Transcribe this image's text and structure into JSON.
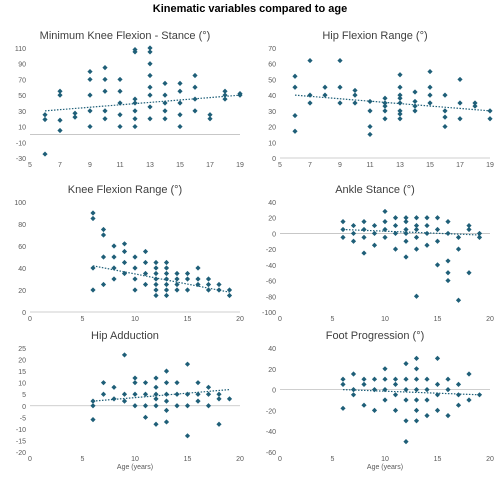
{
  "figure": {
    "title": "Kinematic variables compared to age",
    "colors": {
      "marker": "#1f5f78",
      "trend": "#1f5f78",
      "axis": "#bfbfbf",
      "text": "#595959"
    }
  },
  "chart_data": [
    {
      "type": "scatter",
      "title": "Minimum Knee Flexion - Stance (°)",
      "xlabel": "",
      "xlim": [
        5,
        19
      ],
      "ylim": [
        -30,
        110
      ],
      "xticks": [
        5,
        7,
        9,
        11,
        13,
        15,
        17,
        19
      ],
      "yticks": [
        -30,
        -10,
        10,
        30,
        50,
        70,
        90,
        110
      ],
      "trend": [
        [
          6,
          30
        ],
        [
          19,
          50
        ]
      ],
      "points": [
        [
          6,
          -25
        ],
        [
          6,
          19
        ],
        [
          6,
          25
        ],
        [
          7,
          5
        ],
        [
          7,
          18
        ],
        [
          7,
          50
        ],
        [
          7,
          55
        ],
        [
          8,
          22
        ],
        [
          8,
          27
        ],
        [
          9,
          10
        ],
        [
          9,
          30
        ],
        [
          9,
          50
        ],
        [
          9,
          70
        ],
        [
          9,
          80
        ],
        [
          10,
          20
        ],
        [
          10,
          30
        ],
        [
          10,
          55
        ],
        [
          10,
          70
        ],
        [
          10,
          85
        ],
        [
          11,
          10
        ],
        [
          11,
          25
        ],
        [
          11,
          40
        ],
        [
          11,
          55
        ],
        [
          11,
          70
        ],
        [
          12,
          10
        ],
        [
          12,
          20
        ],
        [
          12,
          30
        ],
        [
          12,
          40
        ],
        [
          12,
          45
        ],
        [
          12,
          105
        ],
        [
          12,
          108
        ],
        [
          13,
          20
        ],
        [
          13,
          35
        ],
        [
          13,
          50
        ],
        [
          13,
          60
        ],
        [
          13,
          75
        ],
        [
          13,
          90
        ],
        [
          13,
          105
        ],
        [
          13,
          110
        ],
        [
          14,
          20
        ],
        [
          14,
          30
        ],
        [
          14,
          40
        ],
        [
          14,
          50
        ],
        [
          14,
          65
        ],
        [
          15,
          10
        ],
        [
          15,
          25
        ],
        [
          15,
          40
        ],
        [
          15,
          55
        ],
        [
          15,
          65
        ],
        [
          16,
          30
        ],
        [
          16,
          45
        ],
        [
          16,
          60
        ],
        [
          16,
          75
        ],
        [
          17,
          20
        ],
        [
          17,
          25
        ],
        [
          18,
          45
        ],
        [
          18,
          50
        ],
        [
          18,
          55
        ],
        [
          19,
          50
        ],
        [
          19,
          52
        ]
      ]
    },
    {
      "type": "scatter",
      "title": "Hip Flexion Range (°)",
      "xlabel": "",
      "xlim": [
        5,
        19
      ],
      "ylim": [
        0,
        70
      ],
      "xticks": [
        5,
        7,
        9,
        11,
        13,
        15,
        17,
        19
      ],
      "yticks": [
        0,
        10,
        20,
        30,
        40,
        50,
        60,
        70
      ],
      "trend": [
        [
          6,
          40
        ],
        [
          19,
          30
        ]
      ],
      "points": [
        [
          6,
          17
        ],
        [
          6,
          27
        ],
        [
          6,
          45
        ],
        [
          6,
          52
        ],
        [
          7,
          35
        ],
        [
          7,
          40
        ],
        [
          7,
          62
        ],
        [
          8,
          40
        ],
        [
          8,
          45
        ],
        [
          9,
          35
        ],
        [
          9,
          45
        ],
        [
          9,
          62
        ],
        [
          10,
          35
        ],
        [
          10,
          40
        ],
        [
          10,
          43
        ],
        [
          11,
          20
        ],
        [
          11,
          30
        ],
        [
          11,
          15
        ],
        [
          11,
          36
        ],
        [
          12,
          25
        ],
        [
          12,
          30
        ],
        [
          12,
          33
        ],
        [
          12,
          35
        ],
        [
          12,
          38
        ],
        [
          13,
          25
        ],
        [
          13,
          28
        ],
        [
          13,
          30
        ],
        [
          13,
          35
        ],
        [
          13,
          38
        ],
        [
          13,
          40
        ],
        [
          13,
          45
        ],
        [
          13,
          53
        ],
        [
          14,
          30
        ],
        [
          14,
          33
        ],
        [
          14,
          36
        ],
        [
          14,
          42
        ],
        [
          15,
          35
        ],
        [
          15,
          40
        ],
        [
          15,
          45
        ],
        [
          15,
          55
        ],
        [
          16,
          20
        ],
        [
          16,
          26
        ],
        [
          16,
          30
        ],
        [
          16,
          40
        ],
        [
          17,
          25
        ],
        [
          17,
          35
        ],
        [
          17,
          50
        ],
        [
          18,
          33
        ],
        [
          18,
          35
        ],
        [
          19,
          25
        ],
        [
          19,
          30
        ]
      ]
    },
    {
      "type": "scatter",
      "title": "Knee Flexion Range (°)",
      "xlabel": "",
      "xlim": [
        0,
        20
      ],
      "ylim": [
        0,
        100
      ],
      "xticks": [
        0,
        5,
        10,
        15,
        20
      ],
      "yticks": [
        0,
        20,
        40,
        60,
        80,
        100
      ],
      "trend": [
        [
          6,
          42
        ],
        [
          19,
          18
        ]
      ],
      "points": [
        [
          6,
          20
        ],
        [
          6,
          40
        ],
        [
          6,
          85
        ],
        [
          6,
          90
        ],
        [
          7,
          25
        ],
        [
          7,
          50
        ],
        [
          7,
          70
        ],
        [
          7,
          75
        ],
        [
          8,
          30
        ],
        [
          8,
          40
        ],
        [
          8,
          50
        ],
        [
          8,
          60
        ],
        [
          9,
          35
        ],
        [
          9,
          45
        ],
        [
          9,
          55
        ],
        [
          9,
          62
        ],
        [
          10,
          20
        ],
        [
          10,
          30
        ],
        [
          10,
          40
        ],
        [
          10,
          50
        ],
        [
          11,
          25
        ],
        [
          11,
          35
        ],
        [
          11,
          45
        ],
        [
          11,
          55
        ],
        [
          12,
          15
        ],
        [
          12,
          20
        ],
        [
          12,
          25
        ],
        [
          12,
          30
        ],
        [
          12,
          35
        ],
        [
          12,
          40
        ],
        [
          12,
          45
        ],
        [
          13,
          15
        ],
        [
          13,
          20
        ],
        [
          13,
          25
        ],
        [
          13,
          30
        ],
        [
          13,
          35
        ],
        [
          13,
          40
        ],
        [
          13,
          45
        ],
        [
          14,
          20
        ],
        [
          14,
          25
        ],
        [
          14,
          30
        ],
        [
          14,
          35
        ],
        [
          15,
          20
        ],
        [
          15,
          30
        ],
        [
          15,
          35
        ],
        [
          16,
          25
        ],
        [
          16,
          30
        ],
        [
          16,
          40
        ],
        [
          17,
          20
        ],
        [
          17,
          25
        ],
        [
          17,
          30
        ],
        [
          18,
          20
        ],
        [
          18,
          25
        ],
        [
          19,
          15
        ],
        [
          19,
          20
        ]
      ]
    },
    {
      "type": "scatter",
      "title": "Ankle Stance (°)",
      "xlabel": "",
      "xlim": [
        0,
        20
      ],
      "ylim": [
        -100,
        40
      ],
      "xticks": [
        0,
        5,
        10,
        15,
        20
      ],
      "yticks": [
        -100,
        -80,
        -60,
        -40,
        -20,
        0,
        20,
        40
      ],
      "trend": [
        [
          6,
          5
        ],
        [
          19,
          -2
        ]
      ],
      "points": [
        [
          6,
          -5
        ],
        [
          6,
          5
        ],
        [
          6,
          15
        ],
        [
          7,
          -10
        ],
        [
          7,
          0
        ],
        [
          7,
          10
        ],
        [
          8,
          -25
        ],
        [
          8,
          -5
        ],
        [
          8,
          5
        ],
        [
          8,
          15
        ],
        [
          9,
          -15
        ],
        [
          9,
          0
        ],
        [
          9,
          10
        ],
        [
          10,
          -5
        ],
        [
          10,
          5
        ],
        [
          10,
          15
        ],
        [
          10,
          28
        ],
        [
          11,
          -20
        ],
        [
          11,
          0
        ],
        [
          11,
          10
        ],
        [
          11,
          20
        ],
        [
          12,
          -30
        ],
        [
          12,
          -10
        ],
        [
          12,
          0
        ],
        [
          12,
          5
        ],
        [
          12,
          15
        ],
        [
          12,
          20
        ],
        [
          13,
          -80
        ],
        [
          13,
          -20
        ],
        [
          13,
          -5
        ],
        [
          13,
          5
        ],
        [
          13,
          10
        ],
        [
          13,
          20
        ],
        [
          14,
          -15
        ],
        [
          14,
          0
        ],
        [
          14,
          10
        ],
        [
          14,
          20
        ],
        [
          15,
          -40
        ],
        [
          15,
          -10
        ],
        [
          15,
          5
        ],
        [
          15,
          20
        ],
        [
          16,
          -60
        ],
        [
          16,
          -50
        ],
        [
          16,
          -35
        ],
        [
          16,
          0
        ],
        [
          16,
          15
        ],
        [
          17,
          -85
        ],
        [
          17,
          -20
        ],
        [
          17,
          -5
        ],
        [
          18,
          -50
        ],
        [
          18,
          5
        ],
        [
          18,
          10
        ],
        [
          19,
          0
        ],
        [
          19,
          -5
        ]
      ]
    },
    {
      "type": "scatter",
      "title": "Hip Adduction",
      "xlabel": "Age (years)",
      "xlim": [
        0,
        20
      ],
      "ylim": [
        -20,
        25
      ],
      "xticks": [
        0,
        5,
        10,
        15,
        20
      ],
      "yticks": [
        -20,
        -15,
        -10,
        -5,
        0,
        5,
        10,
        15,
        20,
        25
      ],
      "trend": [
        [
          6,
          2
        ],
        [
          19,
          7
        ]
      ],
      "points": [
        [
          6,
          -6
        ],
        [
          6,
          0
        ],
        [
          6,
          2
        ],
        [
          7,
          5
        ],
        [
          7,
          10
        ],
        [
          8,
          3
        ],
        [
          8,
          8
        ],
        [
          9,
          2
        ],
        [
          9,
          5
        ],
        [
          9,
          22
        ],
        [
          10,
          0
        ],
        [
          10,
          5
        ],
        [
          10,
          10
        ],
        [
          10,
          12
        ],
        [
          11,
          -5
        ],
        [
          11,
          0
        ],
        [
          11,
          5
        ],
        [
          11,
          10
        ],
        [
          12,
          -8
        ],
        [
          12,
          0
        ],
        [
          12,
          3
        ],
        [
          12,
          5
        ],
        [
          12,
          8
        ],
        [
          12,
          12
        ],
        [
          13,
          -7
        ],
        [
          13,
          -2
        ],
        [
          13,
          2
        ],
        [
          13,
          5
        ],
        [
          13,
          10
        ],
        [
          13,
          15
        ],
        [
          14,
          0
        ],
        [
          14,
          5
        ],
        [
          14,
          10
        ],
        [
          15,
          -13
        ],
        [
          15,
          0
        ],
        [
          15,
          5
        ],
        [
          15,
          18
        ],
        [
          16,
          2
        ],
        [
          16,
          5
        ],
        [
          16,
          10
        ],
        [
          17,
          0
        ],
        [
          17,
          5
        ],
        [
          17,
          8
        ],
        [
          18,
          -8
        ],
        [
          18,
          3
        ],
        [
          18,
          5
        ],
        [
          19,
          3
        ]
      ]
    },
    {
      "type": "scatter",
      "title": "Foot Progression (°)",
      "xlabel": "Age (years)",
      "xlim": [
        0,
        20
      ],
      "ylim": [
        -60,
        40
      ],
      "xticks": [
        0,
        5,
        10,
        15,
        20
      ],
      "yticks": [
        -60,
        -40,
        -20,
        0,
        20,
        40
      ],
      "trend": [
        [
          6,
          0
        ],
        [
          19,
          -5
        ]
      ],
      "points": [
        [
          6,
          -18
        ],
        [
          6,
          5
        ],
        [
          6,
          10
        ],
        [
          7,
          -5
        ],
        [
          7,
          0
        ],
        [
          7,
          15
        ],
        [
          8,
          -15
        ],
        [
          8,
          5
        ],
        [
          8,
          10
        ],
        [
          9,
          -20
        ],
        [
          9,
          0
        ],
        [
          9,
          10
        ],
        [
          10,
          -10
        ],
        [
          10,
          0
        ],
        [
          10,
          10
        ],
        [
          10,
          20
        ],
        [
          11,
          -20
        ],
        [
          11,
          -5
        ],
        [
          11,
          5
        ],
        [
          11,
          10
        ],
        [
          12,
          -50
        ],
        [
          12,
          -30
        ],
        [
          12,
          -10
        ],
        [
          12,
          0
        ],
        [
          12,
          10
        ],
        [
          12,
          25
        ],
        [
          13,
          -30
        ],
        [
          13,
          -20
        ],
        [
          13,
          -10
        ],
        [
          13,
          0
        ],
        [
          13,
          10
        ],
        [
          13,
          20
        ],
        [
          13,
          30
        ],
        [
          14,
          -25
        ],
        [
          14,
          -10
        ],
        [
          14,
          0
        ],
        [
          14,
          10
        ],
        [
          15,
          -20
        ],
        [
          15,
          -5
        ],
        [
          15,
          5
        ],
        [
          15,
          30
        ],
        [
          16,
          -25
        ],
        [
          16,
          0
        ],
        [
          16,
          10
        ],
        [
          17,
          -15
        ],
        [
          17,
          -5
        ],
        [
          17,
          5
        ],
        [
          18,
          -10
        ],
        [
          18,
          15
        ],
        [
          19,
          -5
        ]
      ]
    }
  ]
}
